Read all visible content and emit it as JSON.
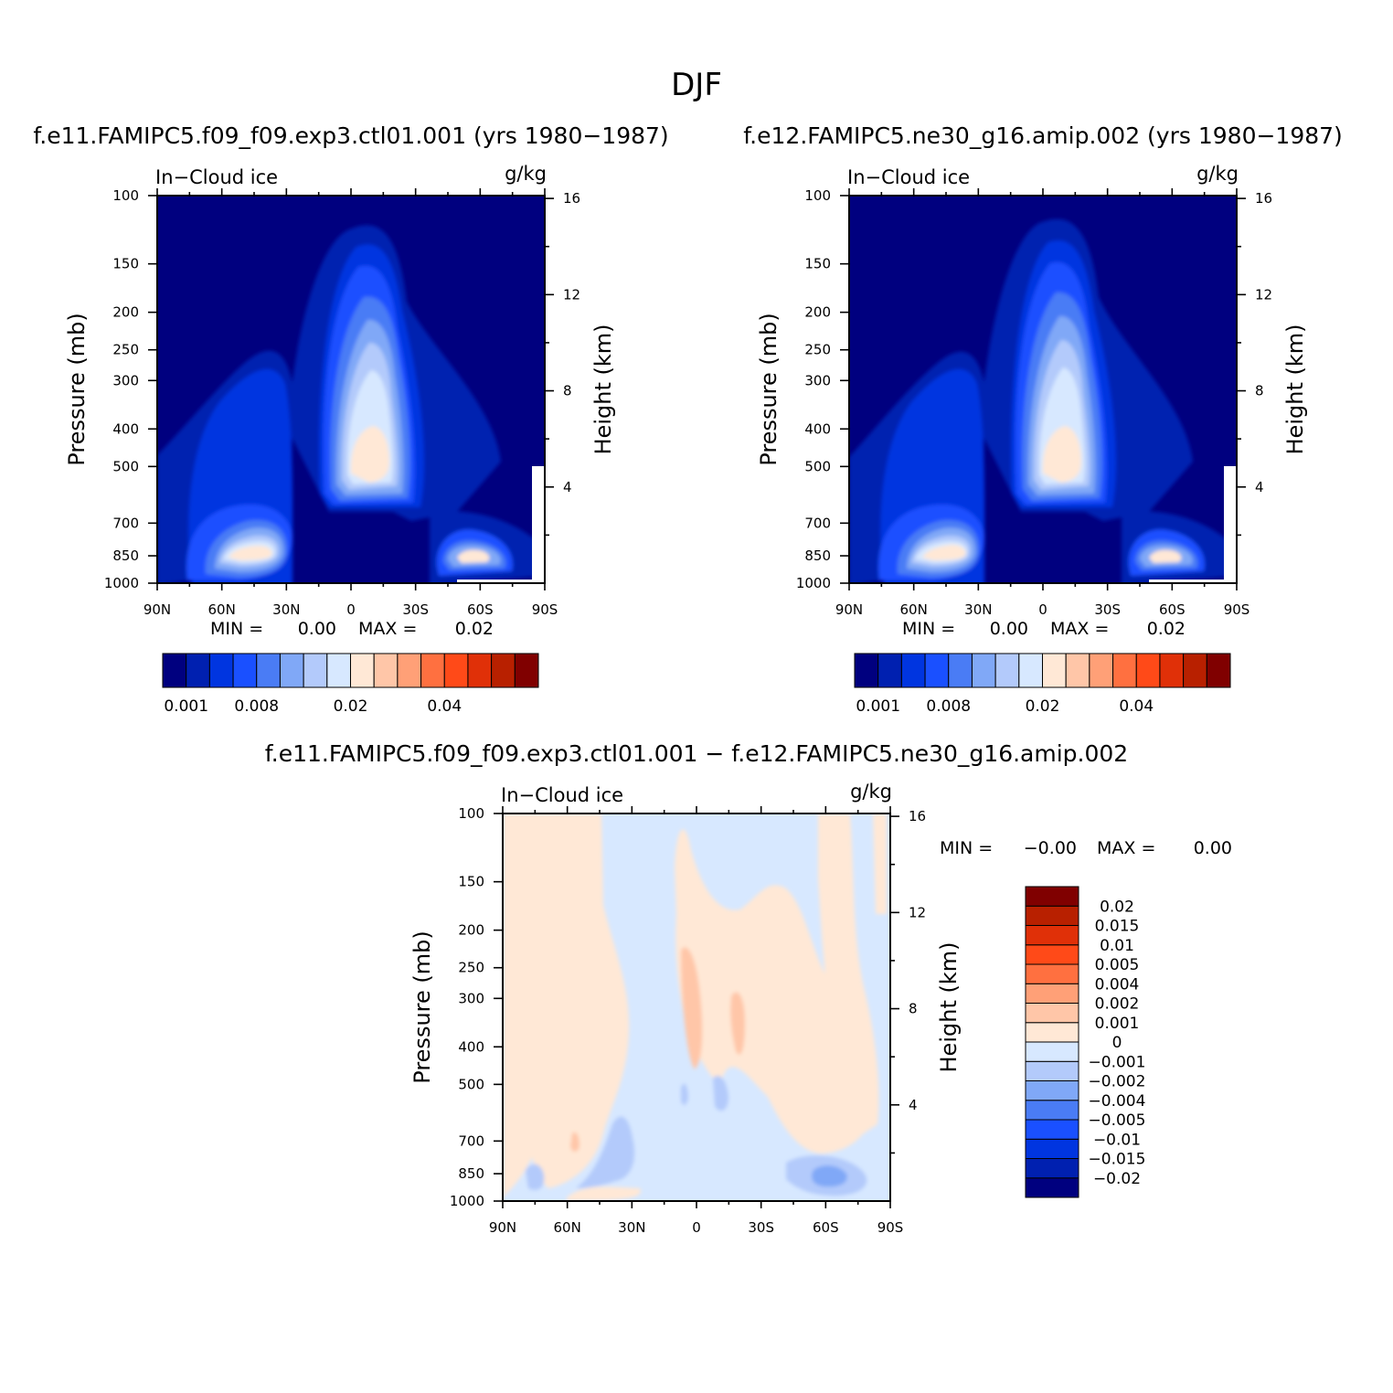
{
  "figure": {
    "title": "DJF",
    "diff_title": "f.e11.FAMIPC5.f09_f09.exp3.ctl01.001  −  f.e12.FAMIPC5.ne30_g16.amip.002"
  },
  "colors": {
    "panel_levels": [
      "#00007f",
      "#0020b0",
      "#0035e0",
      "#1a50ff",
      "#4a7cf5",
      "#80a8f7",
      "#b3cafb",
      "#d7e8ff",
      "#ffe8d6",
      "#ffc6a8",
      "#ffa077",
      "#ff7040",
      "#ff4a18",
      "#e03008",
      "#b82000",
      "#800000"
    ],
    "diff_levels": [
      "#00007f",
      "#0020b0",
      "#0035e0",
      "#1a50ff",
      "#4a7cf5",
      "#80a8f7",
      "#b3cafb",
      "#d7e8ff",
      "#ffe8d6",
      "#ffc6a8",
      "#ffa077",
      "#ff7040",
      "#ff4a18",
      "#e03008",
      "#b82000",
      "#800000"
    ]
  },
  "chart_data": [
    {
      "type": "heatmap",
      "title": "f.e11.FAMIPC5.f09_f09.exp3.ctl01.001 (yrs 1980−1987)",
      "left_label": "In−Cloud ice",
      "right_label": "g/kg",
      "ylabel": "Pressure (mb)",
      "y2label": "Height (km)",
      "x_ticks": [
        "90N",
        "60N",
        "30N",
        "0",
        "30S",
        "60S",
        "90S"
      ],
      "y_ticks": [
        "100",
        "150",
        "200",
        "250",
        "300",
        "400",
        "500",
        "700",
        "850",
        "1000"
      ],
      "y2_ticks": [
        "16",
        "12",
        "8",
        "4"
      ],
      "y_scale": "log",
      "ylim": [
        1000,
        100
      ],
      "stats": {
        "min_label": "MIN =",
        "min": "0.00",
        "max_label": "MAX =",
        "max": "0.02"
      },
      "colorbar": {
        "orientation": "horizontal",
        "labels": [
          "0.001",
          "0.008",
          "0.02",
          "0.04"
        ]
      }
    },
    {
      "type": "heatmap",
      "title": "f.e12.FAMIPC5.ne30_g16.amip.002 (yrs 1980−1987)",
      "left_label": "In−Cloud ice",
      "right_label": "g/kg",
      "ylabel": "Pressure (mb)",
      "y2label": "Height (km)",
      "x_ticks": [
        "90N",
        "60N",
        "30N",
        "0",
        "30S",
        "60S",
        "90S"
      ],
      "y_ticks": [
        "100",
        "150",
        "200",
        "250",
        "300",
        "400",
        "500",
        "700",
        "850",
        "1000"
      ],
      "y2_ticks": [
        "16",
        "12",
        "8",
        "4"
      ],
      "y_scale": "log",
      "ylim": [
        1000,
        100
      ],
      "stats": {
        "min_label": "MIN =",
        "min": "0.00",
        "max_label": "MAX =",
        "max": "0.02"
      },
      "colorbar": {
        "orientation": "horizontal",
        "labels": [
          "0.001",
          "0.008",
          "0.02",
          "0.04"
        ]
      }
    },
    {
      "type": "heatmap",
      "title": "f.e11.FAMIPC5.f09_f09.exp3.ctl01.001  −  f.e12.FAMIPC5.ne30_g16.amip.002",
      "left_label": "In−Cloud ice",
      "right_label": "g/kg",
      "ylabel": "Pressure (mb)",
      "y2label": "Height (km)",
      "x_ticks": [
        "90N",
        "60N",
        "30N",
        "0",
        "30S",
        "60S",
        "90S"
      ],
      "y_ticks": [
        "100",
        "150",
        "200",
        "250",
        "300",
        "400",
        "500",
        "700",
        "850",
        "1000"
      ],
      "y2_ticks": [
        "16",
        "12",
        "8",
        "4"
      ],
      "y_scale": "log",
      "ylim": [
        1000,
        100
      ],
      "stats": {
        "min_label": "MIN =",
        "min": "−0.00",
        "max_label": "MAX =",
        "max": "0.00"
      },
      "colorbar": {
        "orientation": "vertical",
        "labels": [
          "0.02",
          "0.015",
          "0.01",
          "0.005",
          "0.004",
          "0.002",
          "0.001",
          "0",
          "−0.001",
          "−0.002",
          "−0.004",
          "−0.005",
          "−0.01",
          "−0.015",
          "−0.02"
        ]
      }
    }
  ]
}
